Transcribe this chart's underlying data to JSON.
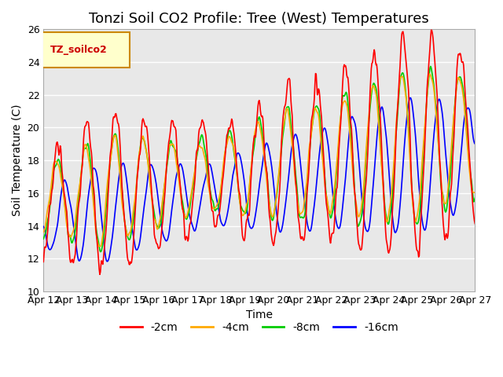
{
  "title": "Tonzi Soil CO2 Profile: Tree (West) Temperatures",
  "xlabel": "Time",
  "ylabel": "Soil Temperature (C)",
  "ylim": [
    10,
    26
  ],
  "yticks": [
    10,
    12,
    14,
    16,
    18,
    20,
    22,
    24,
    26
  ],
  "xlim": [
    0,
    360
  ],
  "xtick_labels": [
    "Apr 12",
    "Apr 13",
    "Apr 14",
    "Apr 15",
    "Apr 16",
    "Apr 17",
    "Apr 18",
    "Apr 19",
    "Apr 20",
    "Apr 21",
    "Apr 22",
    "Apr 23",
    "Apr 24",
    "Apr 25",
    "Apr 26",
    "Apr 27"
  ],
  "xtick_positions": [
    0,
    24,
    48,
    72,
    96,
    120,
    144,
    168,
    192,
    216,
    240,
    264,
    288,
    312,
    336,
    360
  ],
  "series_colors": [
    "#ff0000",
    "#ffaa00",
    "#00cc00",
    "#0000ff"
  ],
  "series_labels": [
    "-2cm",
    "-4cm",
    "-8cm",
    "-16cm"
  ],
  "legend_label": "TZ_soilco2",
  "legend_bg": "#ffffcc",
  "legend_border": "#cc8800",
  "bg_color": "#e8e8e8",
  "grid_color": "#ffffff",
  "title_fontsize": 13,
  "axis_fontsize": 10,
  "tick_fontsize": 9,
  "line_width": 1.2
}
